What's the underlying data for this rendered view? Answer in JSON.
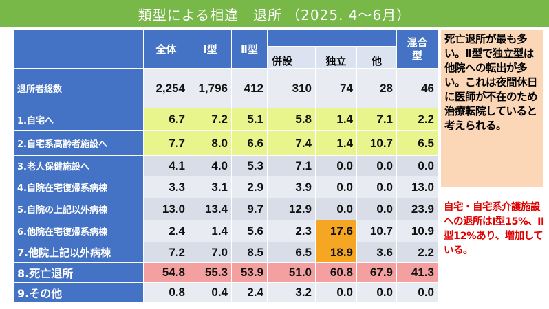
{
  "title": {
    "main": "類型による相違　退所",
    "sub": "（2025. 4〜6月）"
  },
  "table": {
    "headers": {
      "all": "全体",
      "type1": "Ⅰ型",
      "type2": "Ⅱ型",
      "attached": "併設",
      "independent": "独立",
      "other": "他",
      "mixed_line1": "混合",
      "mixed_line2": "型"
    },
    "rows": [
      {
        "label": "退所者総数",
        "values": [
          "2,254",
          "1,796",
          "412",
          "310",
          "74",
          "28",
          "46"
        ]
      },
      {
        "label": "1.自宅へ",
        "values": [
          "6.7",
          "7.2",
          "5.1",
          "5.8",
          "1.4",
          "7.1",
          "2.2"
        ]
      },
      {
        "label": "2.自宅系高齢者施設へ",
        "values": [
          "7.7",
          "8.0",
          "6.6",
          "7.4",
          "1.4",
          "10.7",
          "6.5"
        ]
      },
      {
        "label": "3.老人保健施設へ",
        "values": [
          "4.1",
          "4.0",
          "5.3",
          "7.1",
          "0.0",
          "0.0",
          "0.0"
        ]
      },
      {
        "label": "4.自院在宅復帰系病棟",
        "values": [
          "3.3",
          "3.1",
          "2.9",
          "3.9",
          "0.0",
          "0.0",
          "13.0"
        ]
      },
      {
        "label": "5.自院の上記以外病棟",
        "values": [
          "13.0",
          "13.4",
          "9.7",
          "12.9",
          "0.0",
          "0.0",
          "23.9"
        ]
      },
      {
        "label": "6.他院在宅復帰系病棟",
        "values": [
          "2.4",
          "1.4",
          "5.6",
          "2.3",
          "17.6",
          "10.7",
          "10.9"
        ]
      },
      {
        "label": "7.他院上記以外病棟",
        "values": [
          "7.2",
          "7.0",
          "8.5",
          "6.5",
          "18.9",
          "3.6",
          "2.2"
        ]
      },
      {
        "label": "8.死亡退所",
        "values": [
          "54.8",
          "55.3",
          "53.9",
          "51.0",
          "60.8",
          "67.9",
          "41.3"
        ]
      },
      {
        "label": "9.その他",
        "values": [
          "0.8",
          "0.4",
          "2.4",
          "3.2",
          "0.0",
          "0.0",
          "0.0"
        ]
      }
    ]
  },
  "notes": {
    "box_text": "死亡退所が最も多い。Ⅱ型で独立型は他院への転出が多い。これは夜間休日に医師が不在のため治療転院していると考えられる。",
    "red_text": "自宅・自宅系介護施設への退所はI型15%、II型12%あり、増加している。"
  },
  "colors": {
    "title_bg": "#78b849",
    "header_bg": "#4472c4",
    "yellow_row": "#e8f58c",
    "pink_row": "#f4a0a0",
    "orange_highlight": "#f5a623",
    "note_bg": "#fbd7b8",
    "red_text": "#e00000"
  }
}
